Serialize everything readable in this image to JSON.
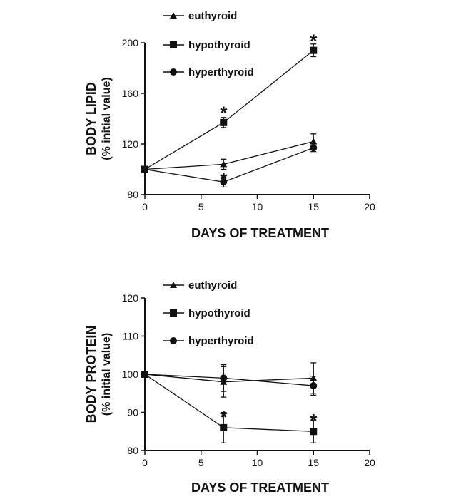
{
  "chart_data": [
    {
      "type": "line",
      "title": "",
      "xlabel": "DAYS OF TREATMENT",
      "ylabel": "BODY LIPID",
      "ylabel_sub": "(% initial value)",
      "xlim": [
        0,
        20
      ],
      "ylim": [
        80,
        200
      ],
      "xticks": [
        0,
        5,
        10,
        15,
        20
      ],
      "yticks": [
        80,
        120,
        160,
        200
      ],
      "legend_position": "top",
      "series": [
        {
          "name": "euthyroid",
          "marker": "triangle",
          "x": [
            0,
            7,
            15
          ],
          "values": [
            100,
            104,
            122
          ],
          "errors": [
            0,
            4,
            6
          ]
        },
        {
          "name": "hypothyroid",
          "marker": "square",
          "x": [
            0,
            7,
            15
          ],
          "values": [
            100,
            137,
            194
          ],
          "errors": [
            0,
            4,
            5
          ]
        },
        {
          "name": "hyperthyroid",
          "marker": "circle",
          "x": [
            0,
            7,
            15
          ],
          "values": [
            100,
            90,
            117
          ],
          "errors": [
            0,
            4,
            3
          ]
        }
      ],
      "annotations": [
        {
          "text": "*",
          "x": 7,
          "y": 145
        },
        {
          "text": "*",
          "x": 15,
          "y": 202
        },
        {
          "text": "*",
          "x": 7,
          "y": 93
        }
      ]
    },
    {
      "type": "line",
      "title": "",
      "xlabel": "DAYS OF TREATMENT",
      "ylabel": "BODY PROTEIN",
      "ylabel_sub": "(% initial value)",
      "xlim": [
        0,
        20
      ],
      "ylim": [
        80,
        120
      ],
      "xticks": [
        0,
        5,
        10,
        15,
        20
      ],
      "yticks": [
        80,
        90,
        100,
        110,
        120
      ],
      "legend_position": "top",
      "series": [
        {
          "name": "euthyroid",
          "marker": "triangle",
          "x": [
            0,
            7,
            15
          ],
          "values": [
            100,
            98,
            99
          ],
          "errors": [
            0,
            4,
            4
          ]
        },
        {
          "name": "hypothyroid",
          "marker": "square",
          "x": [
            0,
            7,
            15
          ],
          "values": [
            100,
            86,
            85
          ],
          "errors": [
            0,
            4,
            3
          ]
        },
        {
          "name": "hyperthyroid",
          "marker": "circle",
          "x": [
            0,
            7,
            15
          ],
          "values": [
            100,
            99,
            97
          ],
          "errors": [
            0,
            3.5,
            2.5
          ]
        }
      ],
      "annotations": [
        {
          "text": "*",
          "x": 7,
          "y": 89
        },
        {
          "text": "*",
          "x": 15,
          "y": 88
        }
      ]
    }
  ]
}
